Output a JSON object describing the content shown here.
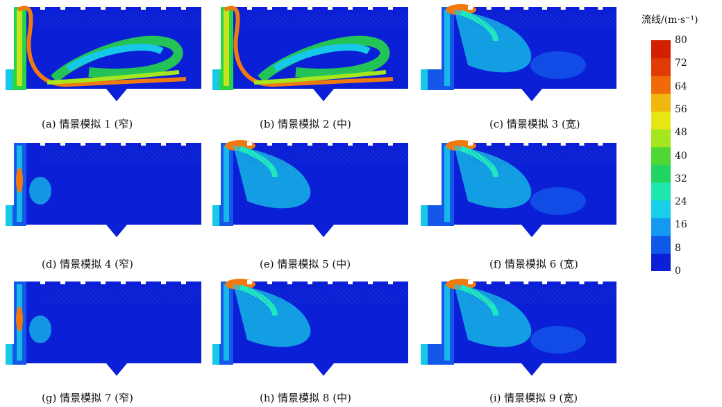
{
  "legend": {
    "title": "流线/(m·s⁻¹)",
    "ticks": [
      "80",
      "72",
      "64",
      "56",
      "48",
      "40",
      "32",
      "24",
      "16",
      "8",
      "0"
    ],
    "colors": [
      "#0a1fd6",
      "#0f58e8",
      "#1399f0",
      "#17cfe8",
      "#1ee8b0",
      "#22d460",
      "#4fd832",
      "#a6e61e",
      "#e6e614",
      "#f0b80f",
      "#f06a0a",
      "#e03a05",
      "#d22000"
    ]
  },
  "panels": [
    {
      "caption": "(a) 情景模拟 1 (窄)",
      "variant": "narrow-high"
    },
    {
      "caption": "(b) 情景模拟 2 (中)",
      "variant": "medium-high"
    },
    {
      "caption": "(c) 情景模拟 3 (宽)",
      "variant": "wide-low"
    },
    {
      "caption": "(d) 情景模拟 4 (窄)",
      "variant": "narrow-low"
    },
    {
      "caption": "(e) 情景模拟 5 (中)",
      "variant": "medium-low"
    },
    {
      "caption": "(f) 情景模拟 6 (宽)",
      "variant": "wide-low"
    },
    {
      "caption": "(g) 情景模拟 7 (窄)",
      "variant": "narrow-low"
    },
    {
      "caption": "(h) 情景模拟 8 (中)",
      "variant": "medium-low"
    },
    {
      "caption": "(i) 情景模拟 9 (宽)",
      "variant": "wide-low"
    }
  ]
}
